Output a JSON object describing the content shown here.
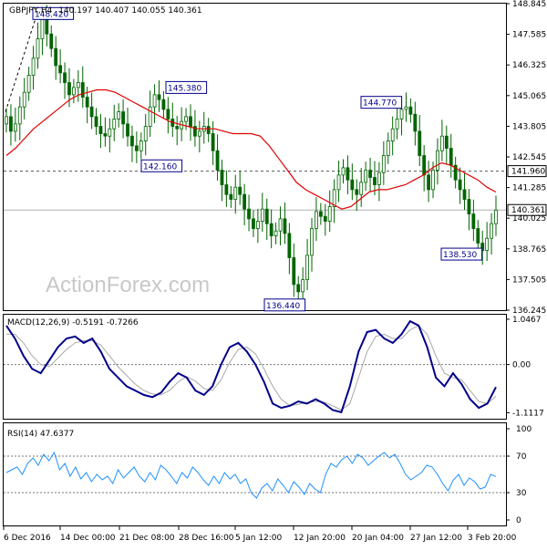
{
  "chart_data": [
    {
      "type": "candlestick",
      "title": "GBPJPY,H4",
      "ohlc_header": "140.197 140.407 140.055 140.361",
      "ylim": [
        136.245,
        148.845
      ],
      "y_ticks": [
        "148.845",
        "147.585",
        "146.325",
        "145.065",
        "143.805",
        "142.545",
        "141.285",
        "140.025",
        "138.765",
        "137.505",
        "136.245"
      ],
      "x_ticks": [
        "6 Dec 2016",
        "14 Dec 00:00",
        "21 Dec 08:00",
        "28 Dec 16:00",
        "5 Jan 12:00",
        "12 Jan 20:00",
        "20 Jan 04:00",
        "27 Jan 12:00",
        "3 Feb 20:00"
      ],
      "current_price": 140.361,
      "current_price_label": "140.361",
      "horizontal_level": 141.96,
      "horizontal_level_label": "141.960",
      "annotations": [
        {
          "text": "148.420",
          "value": 148.42
        },
        {
          "text": "145.380",
          "value": 145.38
        },
        {
          "text": "142.160",
          "value": 142.16
        },
        {
          "text": "136.440",
          "value": 136.44
        },
        {
          "text": "144.770",
          "value": 144.77
        },
        {
          "text": "138.530",
          "value": 138.53
        }
      ],
      "close_path": [
        144.2,
        143.6,
        143.9,
        144.6,
        145.2,
        145.9,
        146.6,
        147.4,
        148.2,
        147.6,
        147.0,
        146.3,
        146.0,
        145.6,
        145.1,
        145.4,
        145.6,
        145.0,
        144.6,
        144.2,
        143.8,
        143.5,
        143.4,
        143.7,
        144.1,
        144.4,
        143.9,
        143.4,
        143.0,
        142.8,
        143.2,
        143.8,
        144.6,
        145.1,
        144.9,
        144.5,
        144.1,
        143.8,
        143.7,
        144.0,
        144.2,
        143.8,
        143.4,
        143.6,
        143.8,
        143.5,
        142.8,
        142.0,
        141.4,
        141.0,
        140.8,
        141.3,
        141.0,
        140.4,
        140.0,
        139.6,
        139.9,
        140.4,
        139.8,
        139.3,
        139.5,
        140.0,
        139.4,
        138.4,
        137.3,
        137.0,
        137.5,
        138.5,
        139.6,
        140.3,
        140.1,
        139.9,
        140.5,
        141.2,
        141.8,
        142.1,
        141.6,
        141.2,
        141.0,
        141.5,
        142.0,
        141.7,
        141.4,
        141.9,
        142.6,
        143.2,
        143.7,
        144.1,
        144.5,
        144.6,
        144.3,
        143.6,
        142.6,
        141.8,
        141.2,
        142.0,
        142.8,
        143.4,
        142.9,
        142.2,
        141.6,
        141.2,
        140.8,
        140.2,
        139.6,
        139.0,
        138.7,
        139.2,
        139.8,
        140.361
      ],
      "ma_path": [
        142.6,
        142.9,
        143.3,
        143.7,
        144.0,
        144.3,
        144.6,
        144.9,
        145.1,
        145.2,
        145.3,
        145.3,
        145.2,
        145.0,
        144.8,
        144.6,
        144.4,
        144.2,
        144.0,
        143.9,
        143.8,
        143.7,
        143.7,
        143.7,
        143.6,
        143.5,
        143.5,
        143.5,
        143.4,
        143.0,
        142.5,
        142.0,
        141.5,
        141.2,
        141.0,
        140.8,
        140.6,
        140.4,
        140.5,
        140.8,
        141.1,
        141.2,
        141.2,
        141.3,
        141.4,
        141.6,
        141.8,
        142.1,
        142.3,
        142.2,
        142.0,
        141.8,
        141.6,
        141.3,
        141.1
      ]
    },
    {
      "type": "line",
      "title": "MACD(12,26,9) -0.5191 -0.7266",
      "ylim": [
        -1.25,
        1.15
      ],
      "y_ticks": [
        {
          "label": "1.0467",
          "value": 1.0467
        },
        {
          "label": "0.00",
          "value": 0.0
        },
        {
          "label": "-1.1117",
          "value": -1.1117
        }
      ],
      "series": [
        {
          "values": [
            0.9,
            0.6,
            0.2,
            -0.1,
            -0.2,
            0.1,
            0.4,
            0.6,
            0.65,
            0.5,
            0.6,
            0.3,
            -0.1,
            -0.3,
            -0.5,
            -0.6,
            -0.7,
            -0.75,
            -0.65,
            -0.4,
            -0.2,
            -0.3,
            -0.6,
            -0.7,
            -0.5,
            0.0,
            0.4,
            0.5,
            0.3,
            0.0,
            -0.4,
            -0.9,
            -1.0,
            -0.95,
            -0.85,
            -0.9,
            -0.8,
            -0.9,
            -1.05,
            -1.1,
            -0.5,
            0.3,
            0.75,
            0.8,
            0.6,
            0.5,
            0.7,
            1.0,
            0.9,
            0.4,
            -0.3,
            -0.5,
            -0.2,
            -0.45,
            -0.8,
            -1.0,
            -0.9,
            -0.52
          ]
        },
        {
          "values": [
            0.7,
            0.7,
            0.5,
            0.2,
            0.0,
            -0.05,
            0.15,
            0.35,
            0.5,
            0.55,
            0.55,
            0.45,
            0.2,
            -0.05,
            -0.25,
            -0.45,
            -0.6,
            -0.68,
            -0.7,
            -0.6,
            -0.4,
            -0.28,
            -0.38,
            -0.55,
            -0.6,
            -0.35,
            0.05,
            0.35,
            0.4,
            0.25,
            -0.1,
            -0.5,
            -0.8,
            -0.95,
            -0.92,
            -0.88,
            -0.85,
            -0.87,
            -0.95,
            -1.05,
            -0.9,
            -0.3,
            0.3,
            0.65,
            0.7,
            0.6,
            0.6,
            0.8,
            0.9,
            0.7,
            0.2,
            -0.2,
            -0.3,
            -0.35,
            -0.6,
            -0.85,
            -0.9,
            -0.73
          ]
        }
      ],
      "colors": {
        "macd": "#00008b",
        "signal": "#a9a9a9"
      }
    },
    {
      "type": "line",
      "title": "RSI(14) 47.6377",
      "ylim": [
        0,
        100
      ],
      "y_ticks": [
        {
          "label": "100",
          "value": 100
        },
        {
          "label": "70",
          "value": 70
        },
        {
          "label": "30",
          "value": 30
        },
        {
          "label": "0",
          "value": 0
        }
      ],
      "levels": [
        70,
        30
      ],
      "series": [
        {
          "values": [
            52,
            55,
            58,
            50,
            62,
            68,
            60,
            72,
            65,
            74,
            55,
            62,
            48,
            58,
            45,
            52,
            42,
            50,
            44,
            48,
            40,
            55,
            46,
            52,
            58,
            48,
            42,
            52,
            44,
            60,
            55,
            48,
            40,
            52,
            46,
            58,
            52,
            44,
            38,
            48,
            40,
            52,
            45,
            50,
            40,
            45,
            30,
            24,
            35,
            40,
            32,
            45,
            38,
            30,
            42,
            36,
            28,
            40,
            34,
            30,
            50,
            62,
            58,
            66,
            70,
            62,
            72,
            68,
            60,
            65,
            70,
            74,
            68,
            72,
            62,
            50,
            44,
            48,
            52,
            60,
            58,
            50,
            40,
            32,
            44,
            50,
            38,
            46,
            42,
            34,
            36,
            50,
            47.6377
          ]
        }
      ],
      "colors": {
        "line": "#1e90ff"
      }
    }
  ],
  "watermark": "ActionForex.com",
  "colors": {
    "candle": "#006400",
    "ma": "#e00000",
    "text": "#000000",
    "label_box": "#00008b",
    "grid_dash": "#555555"
  }
}
